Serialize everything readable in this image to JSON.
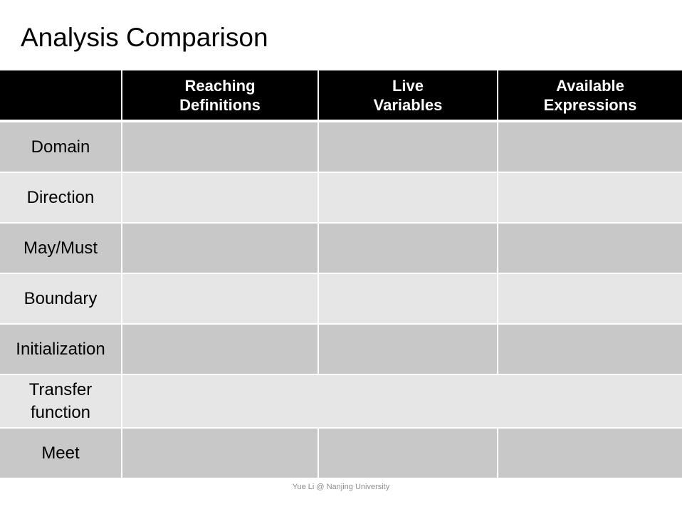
{
  "slide": {
    "title": "Analysis Comparison",
    "footer": "Yue Li @ Nanjing University"
  },
  "table": {
    "header": [
      "",
      "Reaching\nDefinitions",
      "Live\nVariables",
      "Available\nExpressions"
    ],
    "rows": [
      {
        "label": "Domain",
        "cells": [
          "",
          "",
          ""
        ]
      },
      {
        "label": "Direction",
        "cells": [
          "",
          "",
          ""
        ]
      },
      {
        "label": "May/Must",
        "cells": [
          "",
          "",
          ""
        ]
      },
      {
        "label": "Boundary",
        "cells": [
          "",
          "",
          ""
        ]
      },
      {
        "label": "Initialization",
        "cells": [
          "",
          "",
          ""
        ]
      },
      {
        "label": "Transfer\nfunction",
        "merged_cell": ""
      },
      {
        "label": "Meet",
        "cells": [
          "",
          "",
          ""
        ]
      }
    ],
    "colors": {
      "header_bg": "#000000",
      "header_text": "#ffffff",
      "row_dark": "#c8c8c8",
      "row_light": "#e6e6e6"
    }
  }
}
